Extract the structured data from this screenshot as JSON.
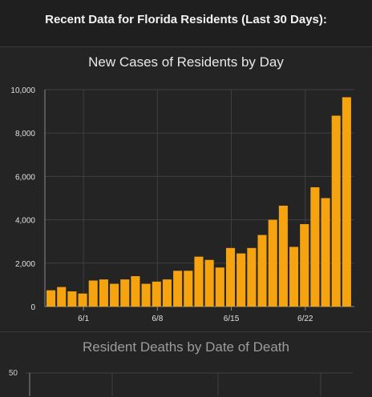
{
  "header": {
    "title": "Recent Data for Florida Residents (Last 30 Days):"
  },
  "colors": {
    "bar": "#f5a30f",
    "background": "#222222",
    "grid": "#3f3f3f",
    "axis": "#8a8a8a"
  },
  "chart_data": [
    {
      "type": "bar",
      "title": "New Cases of Residents by Day",
      "xlabel": "",
      "ylabel": "",
      "ylim": [
        0,
        10000
      ],
      "yticks": [
        0,
        2000,
        4000,
        6000,
        8000,
        10000
      ],
      "ytick_labels": [
        "0",
        "2,000",
        "4,000",
        "6,000",
        "8,000",
        "10,000"
      ],
      "xtick_labels": [
        {
          "label": "6/1",
          "after_index": 3
        },
        {
          "label": "6/8",
          "after_index": 10
        },
        {
          "label": "6/15",
          "after_index": 17
        },
        {
          "label": "6/22",
          "after_index": 24
        }
      ],
      "grid": true,
      "values": [
        750,
        900,
        700,
        600,
        1200,
        1250,
        1050,
        1250,
        1400,
        1050,
        1150,
        1250,
        1650,
        1650,
        2300,
        2150,
        1800,
        2700,
        2450,
        2700,
        3300,
        4000,
        4650,
        2750,
        3800,
        5500,
        5000,
        8800,
        9650
      ]
    },
    {
      "type": "bar",
      "title": "Resident Deaths by Date of Death",
      "ytick_labels": [
        "50"
      ],
      "values": []
    }
  ]
}
